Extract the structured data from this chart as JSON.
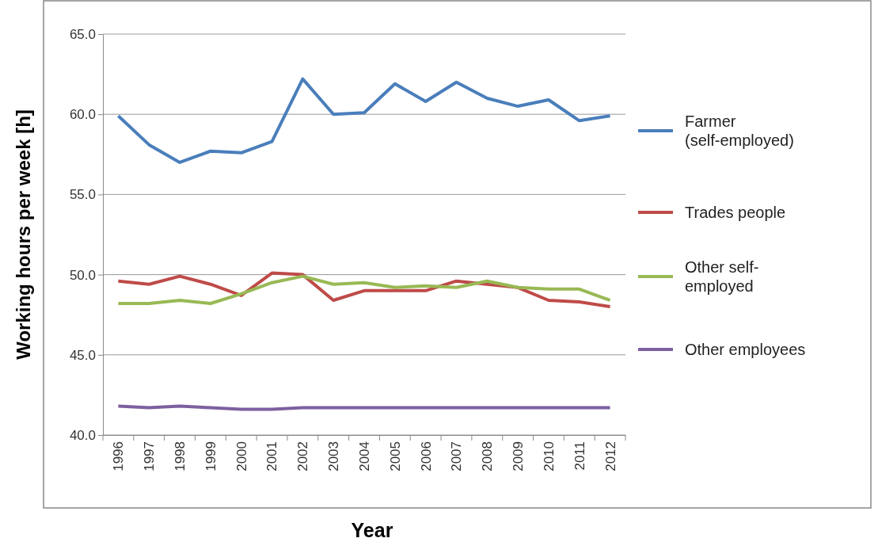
{
  "chart_data": {
    "type": "line",
    "xlabel": "Year",
    "ylabel": "Working hours per week [h]",
    "categories": [
      "1996",
      "1997",
      "1998",
      "1999",
      "2000",
      "2001",
      "2002",
      "2003",
      "2004",
      "2005",
      "2006",
      "2007",
      "2008",
      "2009",
      "2010",
      "2011",
      "2012"
    ],
    "series": [
      {
        "name": "Farmer (self-employed)",
        "color": "#4a7ebb",
        "values": [
          59.9,
          58.1,
          57.0,
          57.7,
          57.6,
          58.3,
          62.2,
          60.0,
          60.1,
          61.9,
          60.8,
          62.0,
          61.0,
          60.5,
          60.9,
          59.6,
          59.9
        ]
      },
      {
        "name": "Trades people",
        "color": "#be4b48",
        "values": [
          49.6,
          49.4,
          49.9,
          49.4,
          48.7,
          50.1,
          50.0,
          48.4,
          49.0,
          49.0,
          49.0,
          49.6,
          49.4,
          49.2,
          48.4,
          48.3,
          48.0
        ]
      },
      {
        "name": "Other self-employed",
        "color": "#98b954",
        "values": [
          48.2,
          48.2,
          48.4,
          48.2,
          48.8,
          49.5,
          49.9,
          49.4,
          49.5,
          49.2,
          49.3,
          49.2,
          49.6,
          49.2,
          49.1,
          49.1,
          48.4
        ]
      },
      {
        "name": "Other employees",
        "color": "#7d60a0",
        "values": [
          41.8,
          41.7,
          41.8,
          41.7,
          41.6,
          41.6,
          41.7,
          41.7,
          41.7,
          41.7,
          41.7,
          41.7,
          41.7,
          41.7,
          41.7,
          41.7,
          41.7
        ]
      }
    ],
    "ylim": [
      40,
      65
    ],
    "yticks": [
      {
        "value": 40,
        "label": "40.0"
      },
      {
        "value": 45,
        "label": "45.0"
      },
      {
        "value": 50,
        "label": "50.0"
      },
      {
        "value": 55,
        "label": "55.0"
      },
      {
        "value": 60,
        "label": "60.0"
      },
      {
        "value": 65,
        "label": "65.0"
      }
    ],
    "grid": "y",
    "legend": "right",
    "marker": "none",
    "line_style": "solid"
  }
}
